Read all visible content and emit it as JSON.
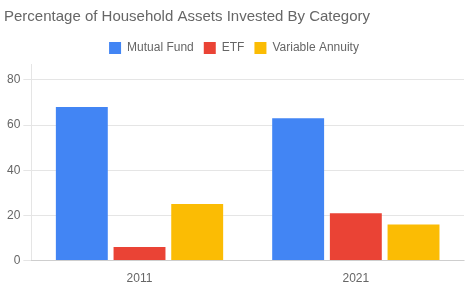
{
  "chart_data": {
    "type": "bar",
    "title": "Percentage of Household Assets Invested By Category",
    "categories": [
      "2011",
      "2021"
    ],
    "series": [
      {
        "name": "Mutual Fund",
        "color": "#4285F4",
        "values": [
          68,
          63
        ]
      },
      {
        "name": "ETF",
        "color": "#EA4335",
        "values": [
          6,
          21
        ]
      },
      {
        "name": "Variable Annuity",
        "color": "#FBBC04",
        "values": [
          25,
          16
        ]
      }
    ],
    "ylim": [
      0,
      87
    ],
    "yticks": [
      0,
      20,
      40,
      60,
      80
    ],
    "grid": true,
    "legend": "top"
  }
}
